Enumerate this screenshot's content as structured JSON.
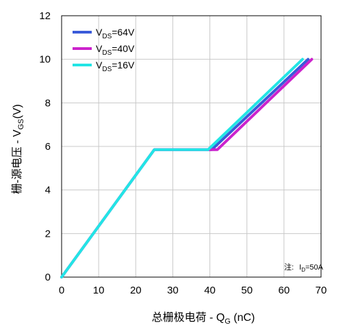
{
  "chart_data": {
    "type": "line",
    "xlabel_main": "总栅极电荷 - Q",
    "xlabel_sub": "G",
    "xlabel_unit": " (nC)",
    "ylabel_main": "栅-源电压 - V",
    "ylabel_sub": "GS",
    "ylabel_unit": "(V)",
    "xlim": [
      0,
      70
    ],
    "ylim": [
      0,
      12
    ],
    "x_ticks": [
      "0",
      "10",
      "20",
      "30",
      "40",
      "50",
      "60",
      "70"
    ],
    "y_ticks": [
      "0",
      "2",
      "4",
      "6",
      "8",
      "10",
      "12"
    ],
    "grid": true,
    "legend_position": "top-left",
    "note": {
      "prefix": "注:",
      "var": "I",
      "sub": "D",
      "value": "=50A"
    },
    "series": [
      {
        "name_main": "V",
        "name_sub": "DS",
        "name_value": "=64V",
        "color": "#3a5bd9",
        "x": [
          0,
          25,
          40.5,
          66.5
        ],
        "y": [
          0,
          5.85,
          5.85,
          10
        ]
      },
      {
        "name_main": "V",
        "name_sub": "DS",
        "name_value": "=40V",
        "color": "#cc22cc",
        "x": [
          0,
          25,
          42,
          67.5
        ],
        "y": [
          0,
          5.85,
          5.85,
          10
        ]
      },
      {
        "name_main": "V",
        "name_sub": "DS",
        "name_value": "=16V",
        "color": "#22e5e5",
        "x": [
          0,
          25,
          39.5,
          65
        ],
        "y": [
          0,
          5.85,
          5.85,
          10
        ]
      }
    ]
  }
}
